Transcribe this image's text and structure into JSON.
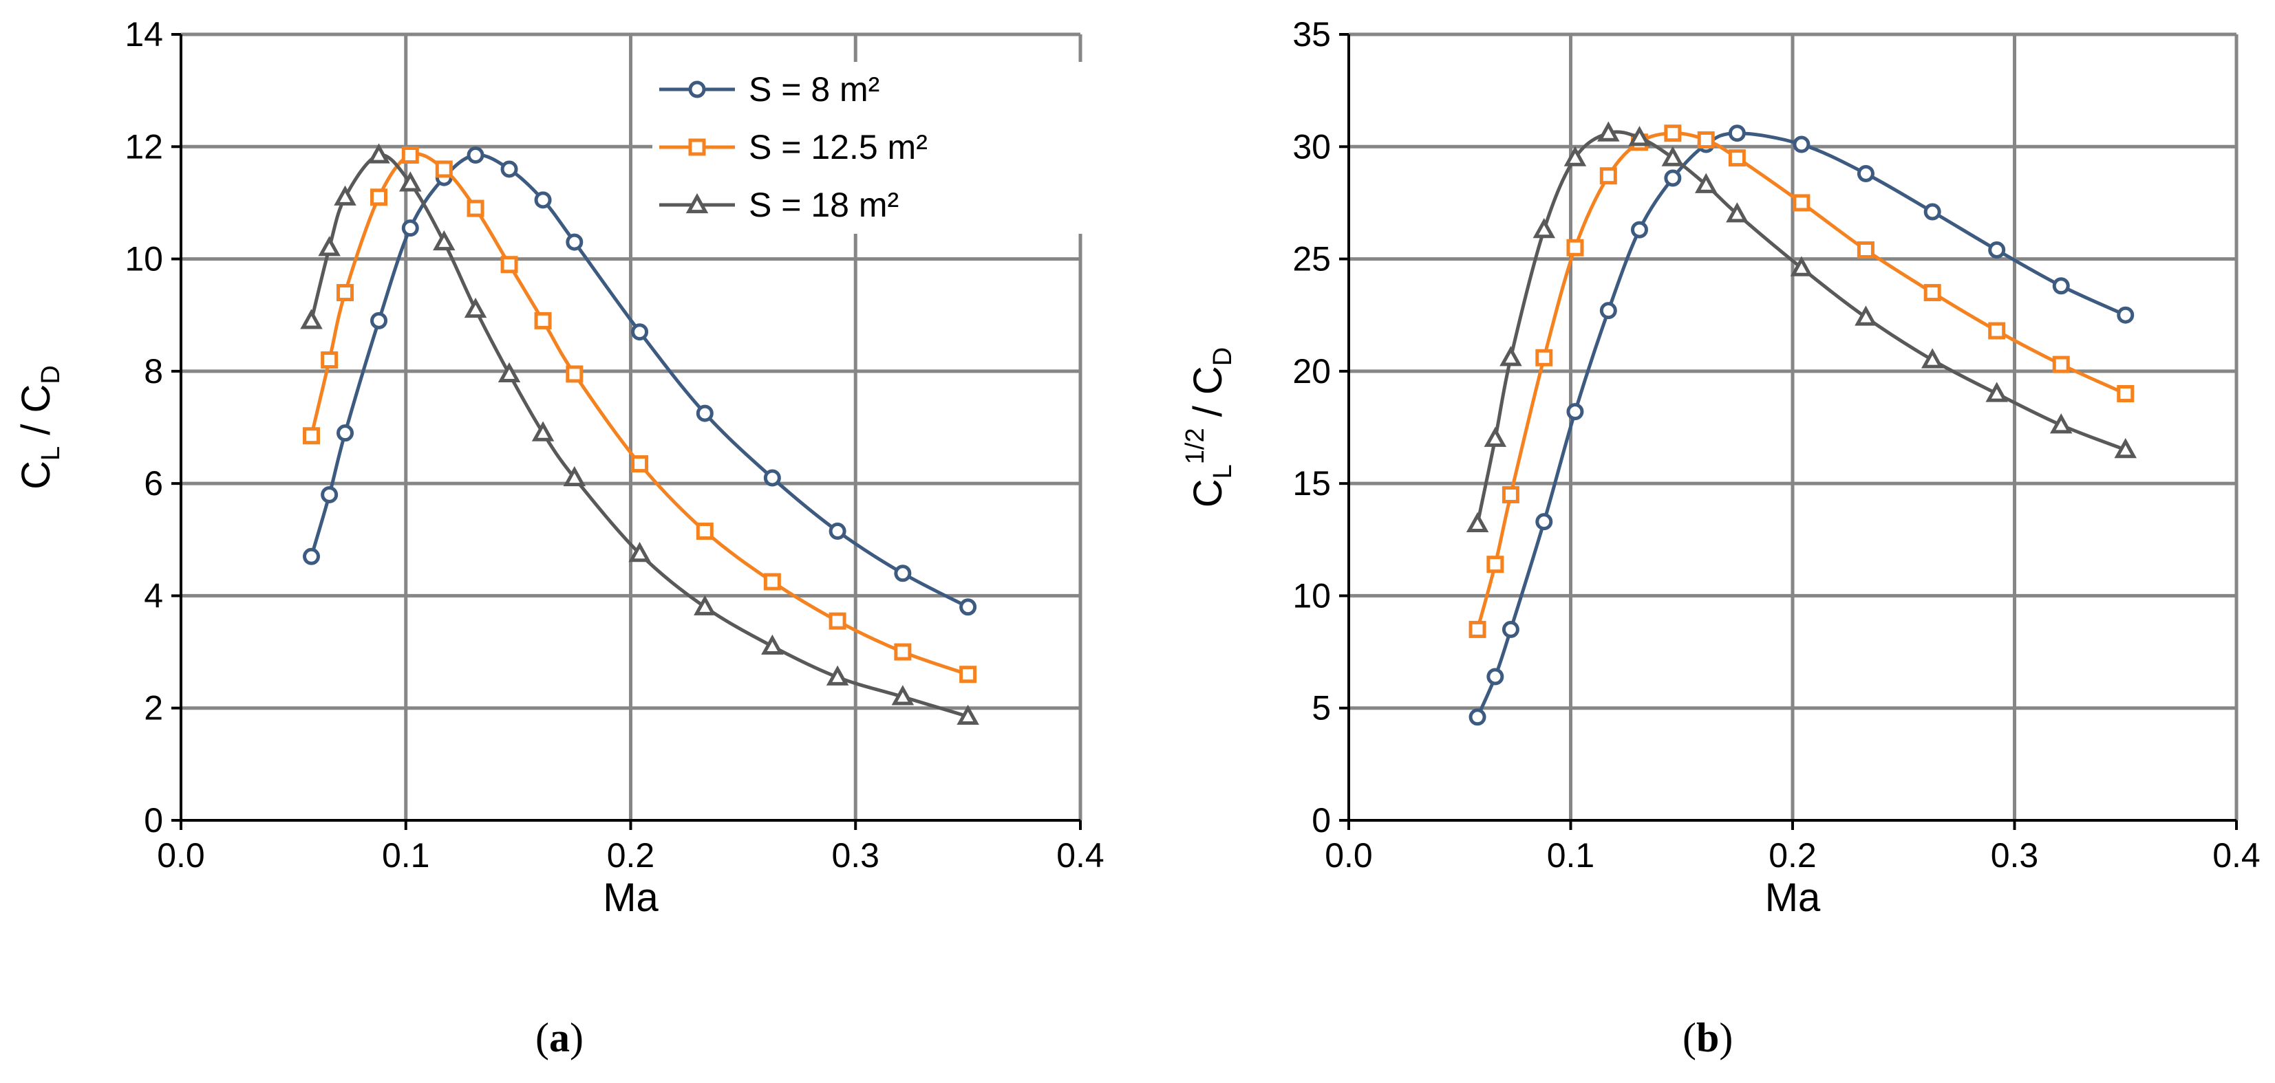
{
  "chart_data": [
    {
      "type": "line",
      "panel_label": "a",
      "title": "",
      "xlabel": "Ma",
      "ylabel_main": "C",
      "ylabel_num_sub": "L",
      "ylabel_num_sup": "",
      "ylabel_sep": " / ",
      "ylabel_den_main": "C",
      "ylabel_den_sub": "D",
      "xlim": [
        0.0,
        0.4
      ],
      "ylim": [
        0,
        14
      ],
      "xticks": [
        0.0,
        0.1,
        0.2,
        0.3,
        0.4
      ],
      "xtick_labels": [
        "0.0",
        "0.1",
        "0.2",
        "0.3",
        "0.4"
      ],
      "yticks": [
        0,
        2,
        4,
        6,
        8,
        10,
        12,
        14
      ],
      "ytick_labels": [
        "0",
        "2",
        "4",
        "6",
        "8",
        "10",
        "12",
        "14"
      ],
      "grid": true,
      "legend_position": "top-right",
      "series": [
        {
          "name": "S = 8 m²",
          "color": "#3d5a80",
          "marker": "circle",
          "x": [
            0.058,
            0.066,
            0.073,
            0.088,
            0.102,
            0.117,
            0.131,
            0.146,
            0.161,
            0.175,
            0.204,
            0.233,
            0.263,
            0.292,
            0.321,
            0.35
          ],
          "y": [
            4.7,
            5.8,
            6.9,
            8.9,
            10.55,
            11.45,
            11.85,
            11.6,
            11.05,
            10.3,
            8.7,
            7.25,
            6.1,
            5.15,
            4.4,
            3.8
          ]
        },
        {
          "name": "S = 12.5 m²",
          "color": "#f5821f",
          "marker": "square",
          "x": [
            0.058,
            0.066,
            0.073,
            0.088,
            0.102,
            0.117,
            0.131,
            0.146,
            0.161,
            0.175,
            0.204,
            0.233,
            0.263,
            0.292,
            0.321,
            0.35
          ],
          "y": [
            6.85,
            8.2,
            9.4,
            11.1,
            11.85,
            11.6,
            10.9,
            9.9,
            8.9,
            7.95,
            6.35,
            5.15,
            4.25,
            3.55,
            3.0,
            2.6
          ]
        },
        {
          "name": "S = 18 m²",
          "color": "#595959",
          "marker": "triangle",
          "x": [
            0.058,
            0.066,
            0.073,
            0.088,
            0.102,
            0.117,
            0.131,
            0.146,
            0.161,
            0.175,
            0.204,
            0.233,
            0.263,
            0.292,
            0.321,
            0.35
          ],
          "y": [
            8.9,
            10.2,
            11.1,
            11.85,
            11.35,
            10.3,
            9.1,
            7.95,
            6.9,
            6.1,
            4.75,
            3.8,
            3.1,
            2.55,
            2.2,
            1.85
          ]
        }
      ]
    },
    {
      "type": "line",
      "panel_label": "b",
      "title": "",
      "xlabel": "Ma",
      "ylabel_main": "C",
      "ylabel_num_sub": "L",
      "ylabel_num_sup": "1/2",
      "ylabel_sep": " / ",
      "ylabel_den_main": "C",
      "ylabel_den_sub": "D",
      "xlim": [
        0.0,
        0.4
      ],
      "ylim": [
        0,
        35
      ],
      "xticks": [
        0.0,
        0.1,
        0.2,
        0.3,
        0.4
      ],
      "xtick_labels": [
        "0.0",
        "0.1",
        "0.2",
        "0.3",
        "0.4"
      ],
      "yticks": [
        0,
        5,
        10,
        15,
        20,
        25,
        30,
        35
      ],
      "ytick_labels": [
        "0",
        "5",
        "10",
        "15",
        "20",
        "25",
        "30",
        "35"
      ],
      "grid": true,
      "legend_position": "none",
      "series": [
        {
          "name": "S = 8 m²",
          "color": "#3d5a80",
          "marker": "circle",
          "x": [
            0.058,
            0.066,
            0.073,
            0.088,
            0.102,
            0.117,
            0.131,
            0.146,
            0.161,
            0.175,
            0.204,
            0.233,
            0.263,
            0.292,
            0.321,
            0.35
          ],
          "y": [
            4.6,
            6.4,
            8.5,
            13.3,
            18.2,
            22.7,
            26.3,
            28.6,
            30.1,
            30.6,
            30.1,
            28.8,
            27.1,
            25.4,
            23.8,
            22.5
          ]
        },
        {
          "name": "S = 12.5 m²",
          "color": "#f5821f",
          "marker": "square",
          "x": [
            0.058,
            0.066,
            0.073,
            0.088,
            0.102,
            0.117,
            0.131,
            0.146,
            0.161,
            0.175,
            0.204,
            0.233,
            0.263,
            0.292,
            0.321,
            0.35
          ],
          "y": [
            8.5,
            11.4,
            14.5,
            20.6,
            25.5,
            28.7,
            30.2,
            30.6,
            30.3,
            29.5,
            27.5,
            25.4,
            23.5,
            21.8,
            20.3,
            19.0
          ]
        },
        {
          "name": "S = 18 m²",
          "color": "#595959",
          "marker": "triangle",
          "x": [
            0.058,
            0.066,
            0.073,
            0.088,
            0.102,
            0.117,
            0.131,
            0.146,
            0.161,
            0.175,
            0.204,
            0.233,
            0.263,
            0.292,
            0.321,
            0.35
          ],
          "y": [
            13.2,
            17.0,
            20.6,
            26.3,
            29.5,
            30.6,
            30.4,
            29.5,
            28.3,
            27.0,
            24.6,
            22.4,
            20.5,
            19.0,
            17.6,
            16.5
          ]
        }
      ]
    }
  ]
}
